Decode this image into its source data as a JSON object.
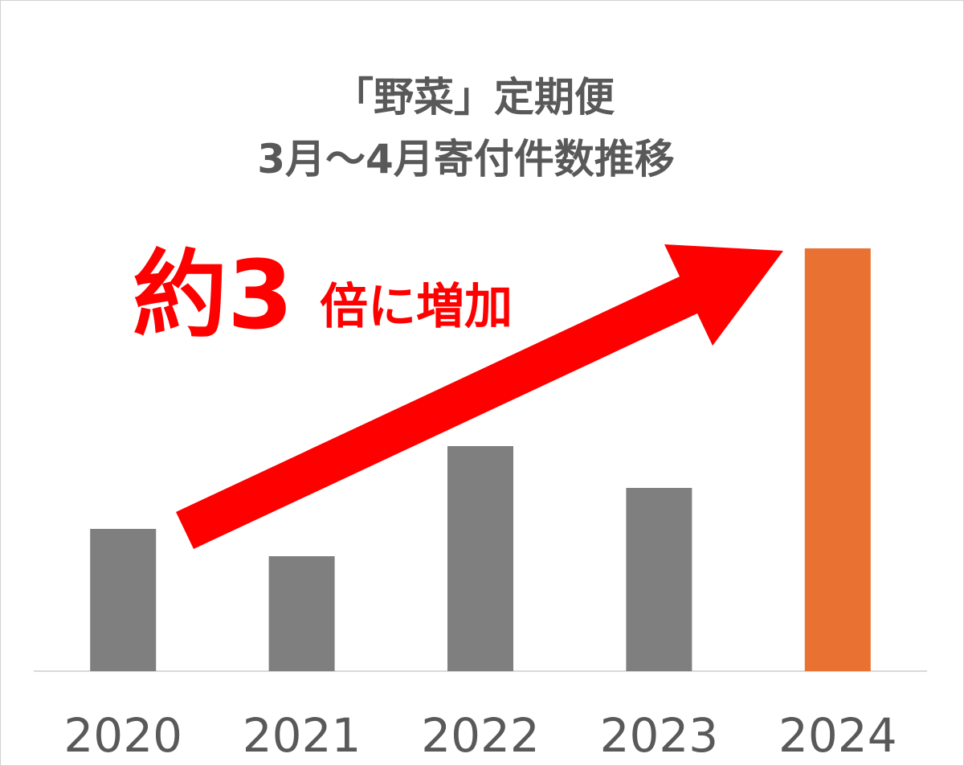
{
  "chart_data": {
    "type": "bar",
    "title": [
      "「野菜」定期便",
      "3月～4月寄付件数推移"
    ],
    "annotation": [
      "約3",
      "倍に増加"
    ],
    "categories": [
      "2020",
      "2021",
      "2022",
      "2023",
      "2024"
    ],
    "values": [
      177,
      143,
      280,
      228,
      526
    ],
    "colors": [
      "#7f7f7f",
      "#7f7f7f",
      "#7f7f7f",
      "#7f7f7f",
      "#e97132"
    ],
    "ylim": [
      0,
      600
    ]
  }
}
